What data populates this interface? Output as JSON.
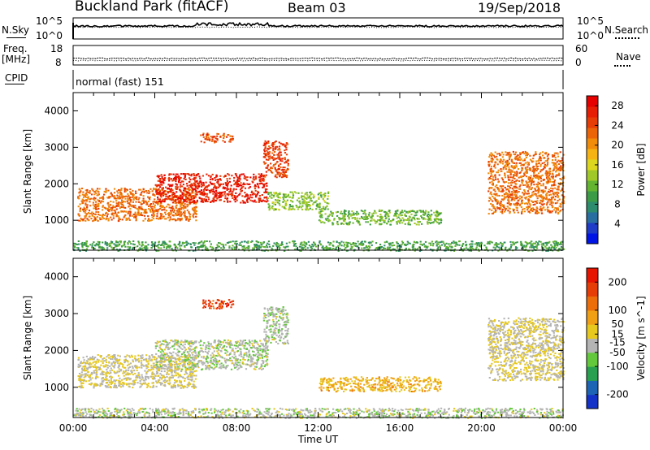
{
  "header": {
    "station": "Buckland Park (fitACF)",
    "beam": "Beam 03",
    "date": "19/Sep/2018"
  },
  "side_labels": {
    "nsky": "N.Sky",
    "nsearch": "N.Search",
    "freq": "Freq.",
    "mhz": "[MHz]",
    "nave": "Nave",
    "cpid": "CPID",
    "cpid_value": "normal (fast) 151",
    "noise_top": "10^5",
    "noise_bottom": "10^0",
    "freq_top": "18",
    "freq_bottom": "8",
    "nave_top": "60",
    "nave_bottom": "0"
  },
  "chart_data": [
    {
      "type": "heatmap",
      "panel": "power",
      "ylabel": "Slant Range [km]",
      "ylim": [
        180,
        4500
      ],
      "yticks": [
        1000,
        2000,
        3000,
        4000
      ],
      "xlabel": "",
      "xlim_hours": [
        0,
        24
      ],
      "colorbar": {
        "label": "Power [dB]",
        "ticks": [
          4,
          8,
          12,
          16,
          20,
          24,
          28
        ],
        "range": [
          0,
          30
        ],
        "colors": [
          "#0014e6",
          "#1e3cc8",
          "#286ea0",
          "#2d8c6e",
          "#3c9b46",
          "#64b432",
          "#a0c828",
          "#dcd71e",
          "#f5b414",
          "#f08c0a",
          "#eb6408",
          "#e63c05",
          "#e61e03",
          "#e60000"
        ]
      },
      "echo_regions": [
        {
          "hours": [
            0.2,
            6.0
          ],
          "km": [
            1000,
            1900
          ],
          "value": 22
        },
        {
          "hours": [
            4.0,
            9.5
          ],
          "km": [
            1500,
            2300
          ],
          "value": 27
        },
        {
          "hours": [
            6.2,
            7.8
          ],
          "km": [
            3150,
            3400
          ],
          "value": 24
        },
        {
          "hours": [
            9.3,
            10.5
          ],
          "km": [
            2200,
            3200
          ],
          "value": 25
        },
        {
          "hours": [
            9.5,
            12.5
          ],
          "km": [
            1300,
            1800
          ],
          "value": 13
        },
        {
          "hours": [
            12.0,
            18.0
          ],
          "km": [
            900,
            1300
          ],
          "value": 12
        },
        {
          "hours": [
            20.3,
            24.0
          ],
          "km": [
            1200,
            2900
          ],
          "value": 22
        },
        {
          "hours": [
            0.0,
            24.0
          ],
          "km": [
            180,
            450
          ],
          "value": 10
        }
      ]
    },
    {
      "type": "heatmap",
      "panel": "velocity",
      "ylabel": "Slant Range [km]",
      "ylim": [
        180,
        4500
      ],
      "yticks": [
        1000,
        2000,
        3000,
        4000
      ],
      "xlabel": "Time UT",
      "xlim_hours": [
        0,
        24
      ],
      "xticks": [
        "00:00",
        "04:00",
        "08:00",
        "12:00",
        "16:00",
        "20:00",
        "00:00"
      ],
      "colorbar": {
        "label": "Velocity [m s^-1]",
        "ticks": [
          200,
          100,
          50,
          15,
          -15,
          -50,
          -100,
          -200
        ],
        "range": [
          -250,
          250
        ],
        "colors": [
          "#1432c8",
          "#1e64b4",
          "#28a050",
          "#64c83c",
          "#b4b4b4",
          "#e6c81e",
          "#f0a014",
          "#eb6e0a",
          "#e63c05",
          "#e61400"
        ]
      },
      "echo_regions": [
        {
          "hours": [
            0.2,
            6.0
          ],
          "km": [
            1000,
            1900
          ],
          "value": 0
        },
        {
          "hours": [
            4.0,
            9.5
          ],
          "km": [
            1500,
            2300
          ],
          "value": -30
        },
        {
          "hours": [
            6.2,
            7.8
          ],
          "km": [
            3150,
            3400
          ],
          "value": 180
        },
        {
          "hours": [
            9.3,
            10.5
          ],
          "km": [
            2200,
            3200
          ],
          "value": -40
        },
        {
          "hours": [
            12.0,
            18.0
          ],
          "km": [
            900,
            1300
          ],
          "value": 60
        },
        {
          "hours": [
            20.3,
            24.0
          ],
          "km": [
            1200,
            2900
          ],
          "value": 0
        },
        {
          "hours": [
            0.0,
            24.0
          ],
          "km": [
            180,
            450
          ],
          "value": -30
        }
      ]
    }
  ]
}
